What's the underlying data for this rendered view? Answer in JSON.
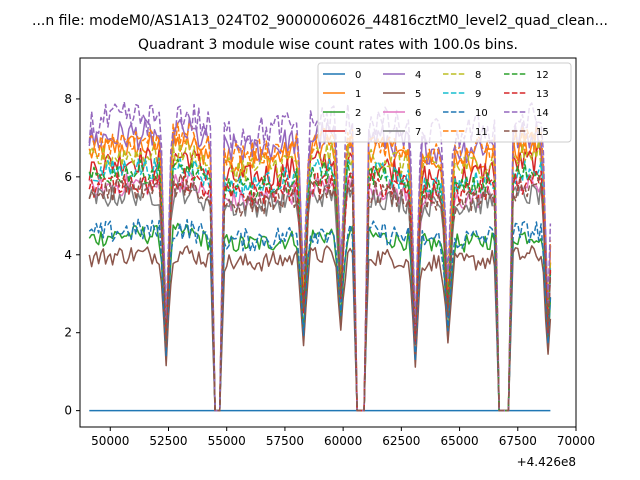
{
  "figure": {
    "suptitle": "...n file: modeM0/AS1A13_024T02_9000006026_44816cztM0_level2_quad_clean...",
    "title": "Quadrant 3 module wise count rates with 100.0s bins.",
    "offset_label": "+4.426e8"
  },
  "chart_data": {
    "type": "line",
    "title": "Quadrant 3 module wise count rates with 100.0s bins.",
    "xlabel": "",
    "ylabel": "",
    "x_offset": 442600000,
    "xlim": [
      48700,
      70000
    ],
    "ylim": [
      -0.42,
      9.05
    ],
    "xticks": [
      50000,
      52500,
      55000,
      57500,
      60000,
      62500,
      65000,
      67500,
      70000
    ],
    "xtick_labels": [
      "50000",
      "52500",
      "55000",
      "57500",
      "60000",
      "62500",
      "65000",
      "67500",
      "70000"
    ],
    "yticks": [
      0,
      2,
      4,
      6,
      8
    ],
    "ytick_labels": [
      "0",
      "2",
      "4",
      "6",
      "8"
    ],
    "grid": false,
    "legend_position": "top-right",
    "x_start": 49100,
    "x_end": 68900,
    "bin_seconds": 100,
    "zero_windows": [
      [
        54500,
        54700
      ],
      [
        60600,
        60900
      ],
      [
        66700,
        67100
      ]
    ],
    "dip_points": [
      [
        52400,
        0.3
      ],
      [
        58300,
        0.45
      ],
      [
        59900,
        0.5
      ],
      [
        63100,
        0.3
      ],
      [
        64500,
        0.45
      ],
      [
        68800,
        0.35
      ]
    ],
    "series": [
      {
        "name": "0",
        "color": "#1f77b4",
        "dash": "solid",
        "level": 0.0,
        "noise": 0.0,
        "flat": true
      },
      {
        "name": "1",
        "color": "#ff7f0e",
        "dash": "solid",
        "level": 6.6,
        "noise": 0.35
      },
      {
        "name": "2",
        "color": "#2ca02c",
        "dash": "solid",
        "level": 4.4,
        "noise": 0.25
      },
      {
        "name": "3",
        "color": "#d62728",
        "dash": "solid",
        "level": 6.2,
        "noise": 0.35
      },
      {
        "name": "4",
        "color": "#9467bd",
        "dash": "solid",
        "level": 6.9,
        "noise": 0.4
      },
      {
        "name": "5",
        "color": "#8c564b",
        "dash": "solid",
        "level": 3.9,
        "noise": 0.25
      },
      {
        "name": "6",
        "color": "#e377c2",
        "dash": "solid",
        "level": 5.6,
        "noise": 0.3
      },
      {
        "name": "7",
        "color": "#7f7f7f",
        "dash": "solid",
        "level": 5.4,
        "noise": 0.3
      },
      {
        "name": "8",
        "color": "#bcbd22",
        "dash": "dashed",
        "level": 6.4,
        "noise": 0.35
      },
      {
        "name": "9",
        "color": "#17becf",
        "dash": "dashed",
        "level": 6.0,
        "noise": 0.3
      },
      {
        "name": "10",
        "color": "#1f77b4",
        "dash": "dashed",
        "level": 4.5,
        "noise": 0.3
      },
      {
        "name": "11",
        "color": "#ff7f0e",
        "dash": "dashed",
        "level": 6.8,
        "noise": 0.35
      },
      {
        "name": "12",
        "color": "#2ca02c",
        "dash": "dashed",
        "level": 5.9,
        "noise": 0.3
      },
      {
        "name": "13",
        "color": "#d62728",
        "dash": "dashed",
        "level": 5.7,
        "noise": 0.3
      },
      {
        "name": "14",
        "color": "#9467bd",
        "dash": "dashed",
        "level": 7.3,
        "noise": 0.45
      },
      {
        "name": "15",
        "color": "#8c564b",
        "dash": "dashed",
        "level": 5.5,
        "noise": 0.3
      }
    ]
  }
}
